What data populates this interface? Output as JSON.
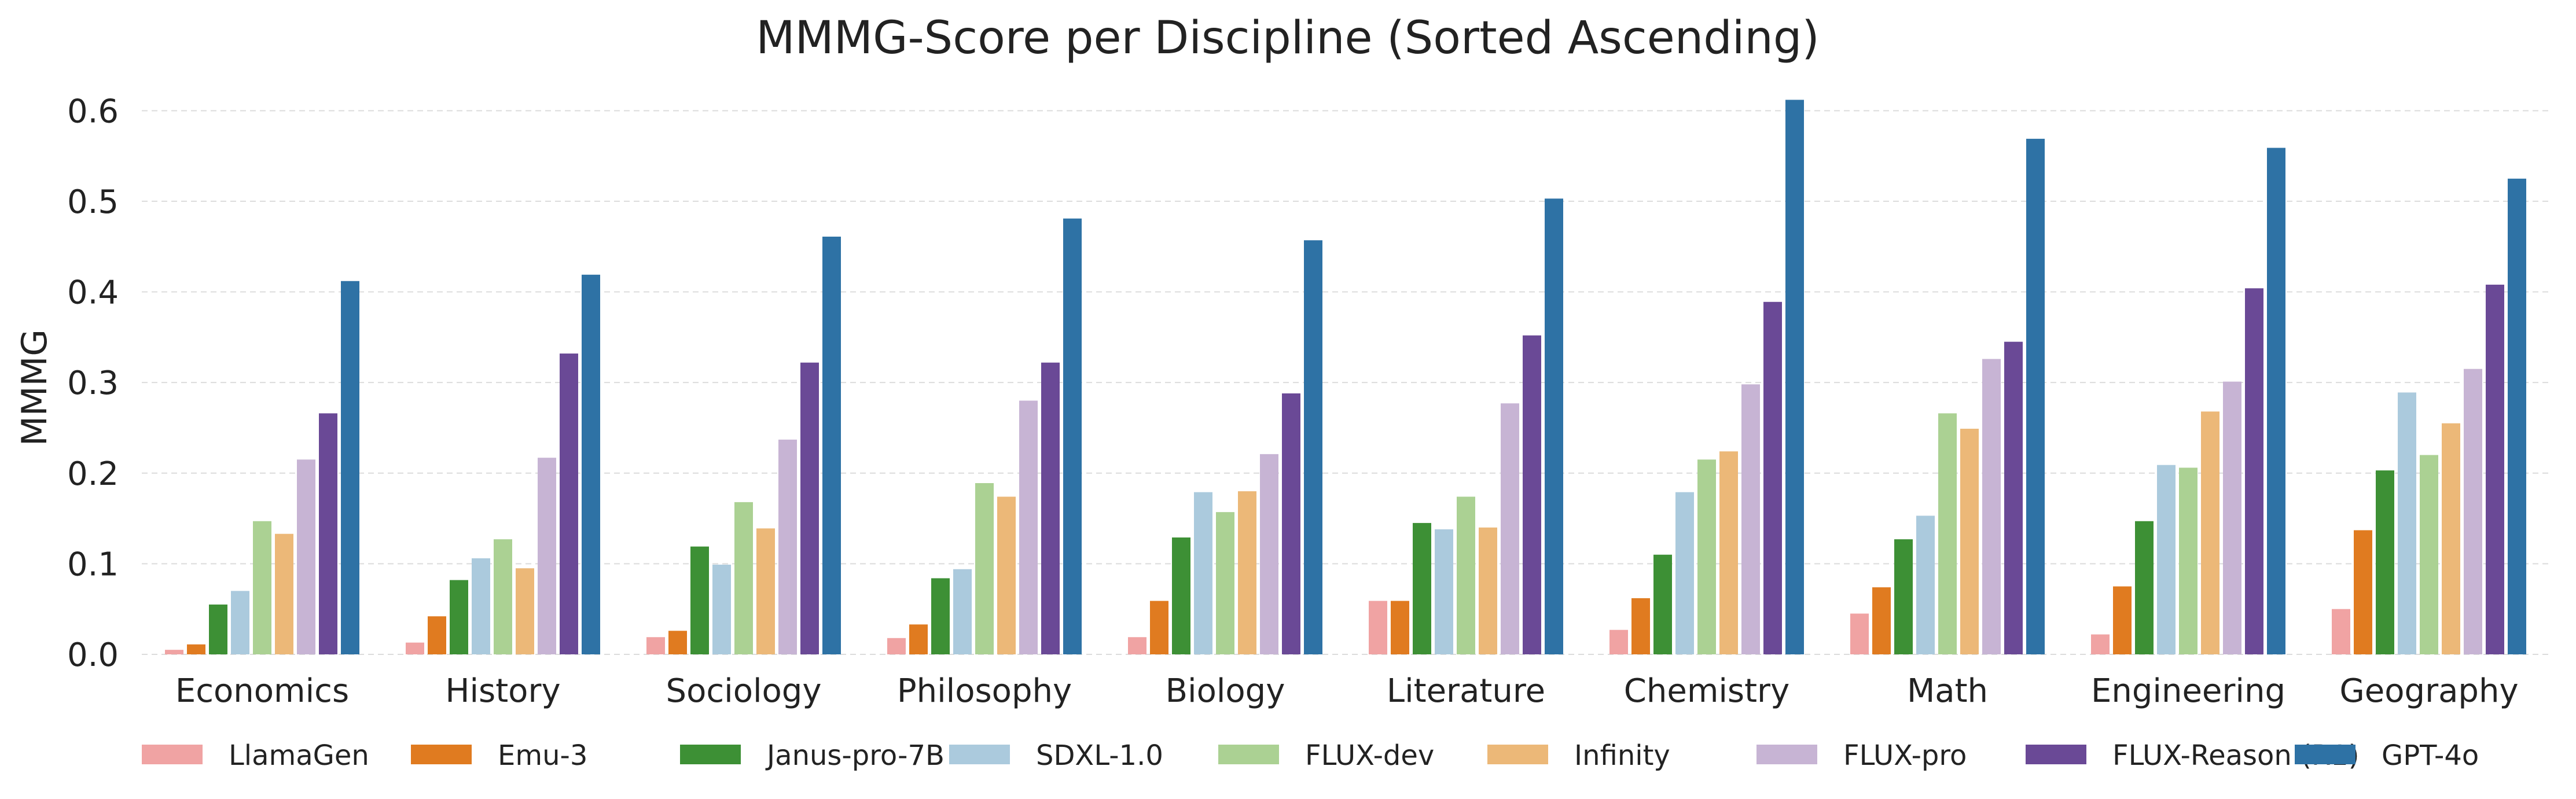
{
  "chart_data": {
    "type": "bar",
    "title": "MMMG-Score per Discipline (Sorted Ascending)",
    "xlabel": "",
    "ylabel": "MMMG",
    "ylim": [
      0,
      0.62
    ],
    "yticks": [
      "0.0",
      "0.1",
      "0.2",
      "0.3",
      "0.4",
      "0.5",
      "0.6"
    ],
    "grid": "horizontal dashed",
    "legend_position": "bottom",
    "categories": [
      "Economics",
      "History",
      "Sociology",
      "Philosophy",
      "Biology",
      "Literature",
      "Chemistry",
      "Math",
      "Engineering",
      "Geography"
    ],
    "series": [
      {
        "name": "LlamaGen",
        "color": "#f0a3a3",
        "values": [
          0.005,
          0.013,
          0.019,
          0.018,
          0.019,
          0.059,
          0.027,
          0.045,
          0.022,
          0.05
        ]
      },
      {
        "name": "Emu-3",
        "color": "#e07b20",
        "values": [
          0.011,
          0.042,
          0.026,
          0.033,
          0.059,
          0.059,
          0.062,
          0.074,
          0.075,
          0.137
        ]
      },
      {
        "name": "Janus-pro-7B",
        "color": "#3d9035",
        "values": [
          0.055,
          0.082,
          0.119,
          0.084,
          0.129,
          0.145,
          0.11,
          0.127,
          0.147,
          0.203
        ]
      },
      {
        "name": "SDXL-1.0",
        "color": "#abcadd",
        "values": [
          0.07,
          0.106,
          0.099,
          0.094,
          0.179,
          0.138,
          0.179,
          0.153,
          0.209,
          0.289
        ]
      },
      {
        "name": "FLUX-dev",
        "color": "#abd193",
        "values": [
          0.147,
          0.127,
          0.168,
          0.189,
          0.157,
          0.174,
          0.215,
          0.266,
          0.206,
          0.22
        ]
      },
      {
        "name": "Infinity",
        "color": "#ecb878",
        "values": [
          0.133,
          0.095,
          0.139,
          0.174,
          0.18,
          0.14,
          0.224,
          0.249,
          0.268,
          0.255
        ]
      },
      {
        "name": "FLUX-pro",
        "color": "#c7b4d4",
        "values": [
          0.215,
          0.217,
          0.237,
          0.28,
          0.221,
          0.277,
          0.298,
          0.326,
          0.301,
          0.315
        ]
      },
      {
        "name": "FLUX-Reason (R1)",
        "color": "#6a4996",
        "values": [
          0.266,
          0.332,
          0.322,
          0.322,
          0.288,
          0.352,
          0.389,
          0.345,
          0.404,
          0.408
        ]
      },
      {
        "name": "GPT-4o",
        "color": "#2e72a5",
        "values": [
          0.412,
          0.419,
          0.461,
          0.481,
          0.457,
          0.503,
          0.612,
          0.569,
          0.559,
          0.525
        ]
      }
    ]
  }
}
